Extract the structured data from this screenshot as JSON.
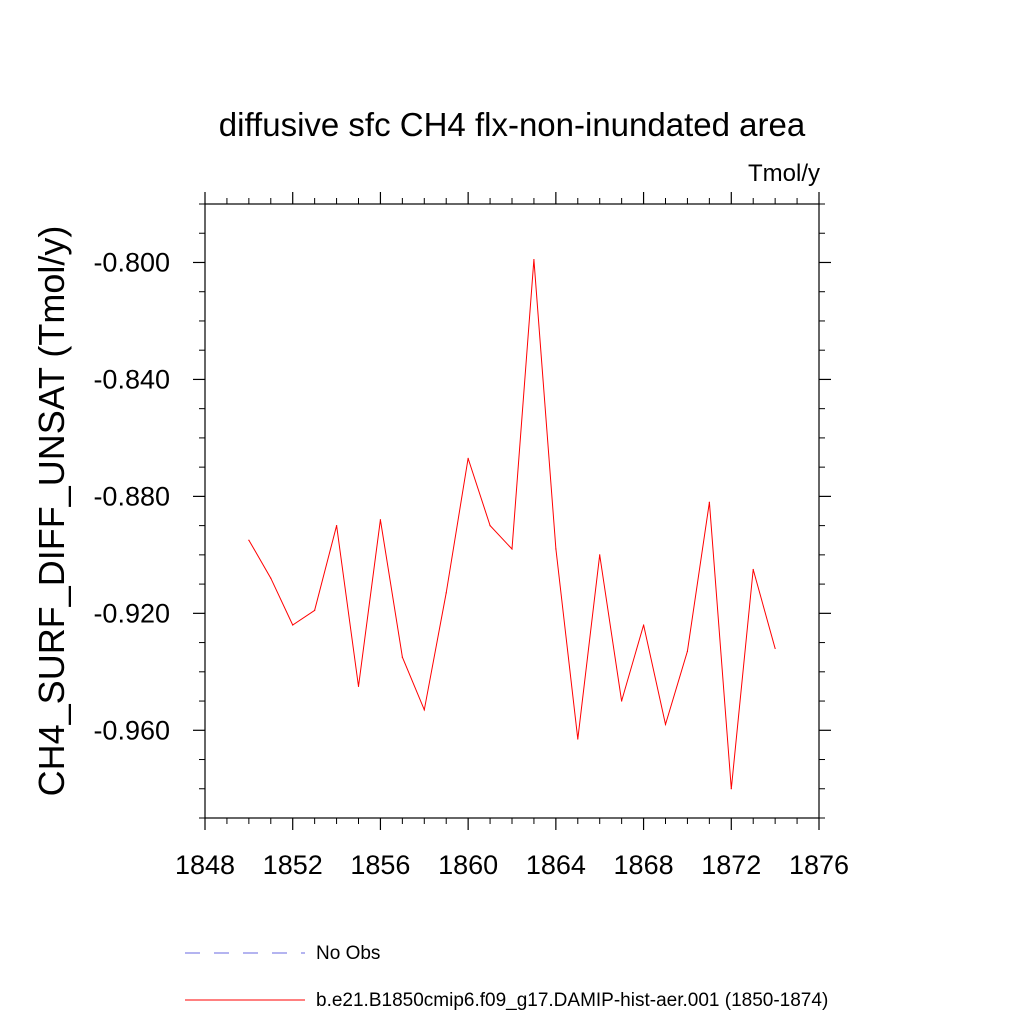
{
  "chart_data": {
    "type": "line",
    "title": "diffusive sfc CH4 flx-non-inundated area",
    "units_label": "Tmol/y",
    "xlabel": "",
    "ylabel": "CH4_SURF_DIFF_UNSAT  (Tmol/y)",
    "xlim": [
      1848,
      1876
    ],
    "ylim": [
      -0.99,
      -0.78
    ],
    "x_ticks": [
      1848,
      1852,
      1856,
      1860,
      1864,
      1868,
      1872,
      1876
    ],
    "x_tick_labels": [
      "1848",
      "1852",
      "1856",
      "1860",
      "1864",
      "1868",
      "1872",
      "1876"
    ],
    "y_ticks": [
      -0.8,
      -0.84,
      -0.88,
      -0.92,
      -0.96
    ],
    "y_tick_labels": [
      "-0.800",
      "-0.840",
      "-0.880",
      "-0.920",
      "-0.960"
    ],
    "grid": false,
    "legend_position": "bottom",
    "legend": [
      {
        "name": "No Obs",
        "color": "#6a6ae0",
        "style": "dashed"
      },
      {
        "name": "b.e21.B1850cmip6.f09_g17.DAMIP-hist-aer.001 (1850-1874)",
        "color": "#ff0000",
        "style": "solid"
      }
    ],
    "series": [
      {
        "name": "b.e21.B1850cmip6.f09_g17.DAMIP-hist-aer.001 (1850-1874)",
        "color": "#ff0000",
        "x": [
          1850,
          1851,
          1852,
          1853,
          1854,
          1855,
          1856,
          1857,
          1858,
          1859,
          1860,
          1861,
          1862,
          1863,
          1864,
          1865,
          1866,
          1867,
          1868,
          1869,
          1870,
          1871,
          1872,
          1873,
          1874
        ],
        "y": [
          -0.895,
          -0.908,
          -0.924,
          -0.919,
          -0.89,
          -0.945,
          -0.888,
          -0.935,
          -0.953,
          -0.913,
          -0.867,
          -0.89,
          -0.898,
          -0.799,
          -0.898,
          -0.963,
          -0.9,
          -0.95,
          -0.924,
          -0.958,
          -0.933,
          -0.882,
          -0.98,
          -0.905,
          -0.932
        ]
      }
    ]
  }
}
